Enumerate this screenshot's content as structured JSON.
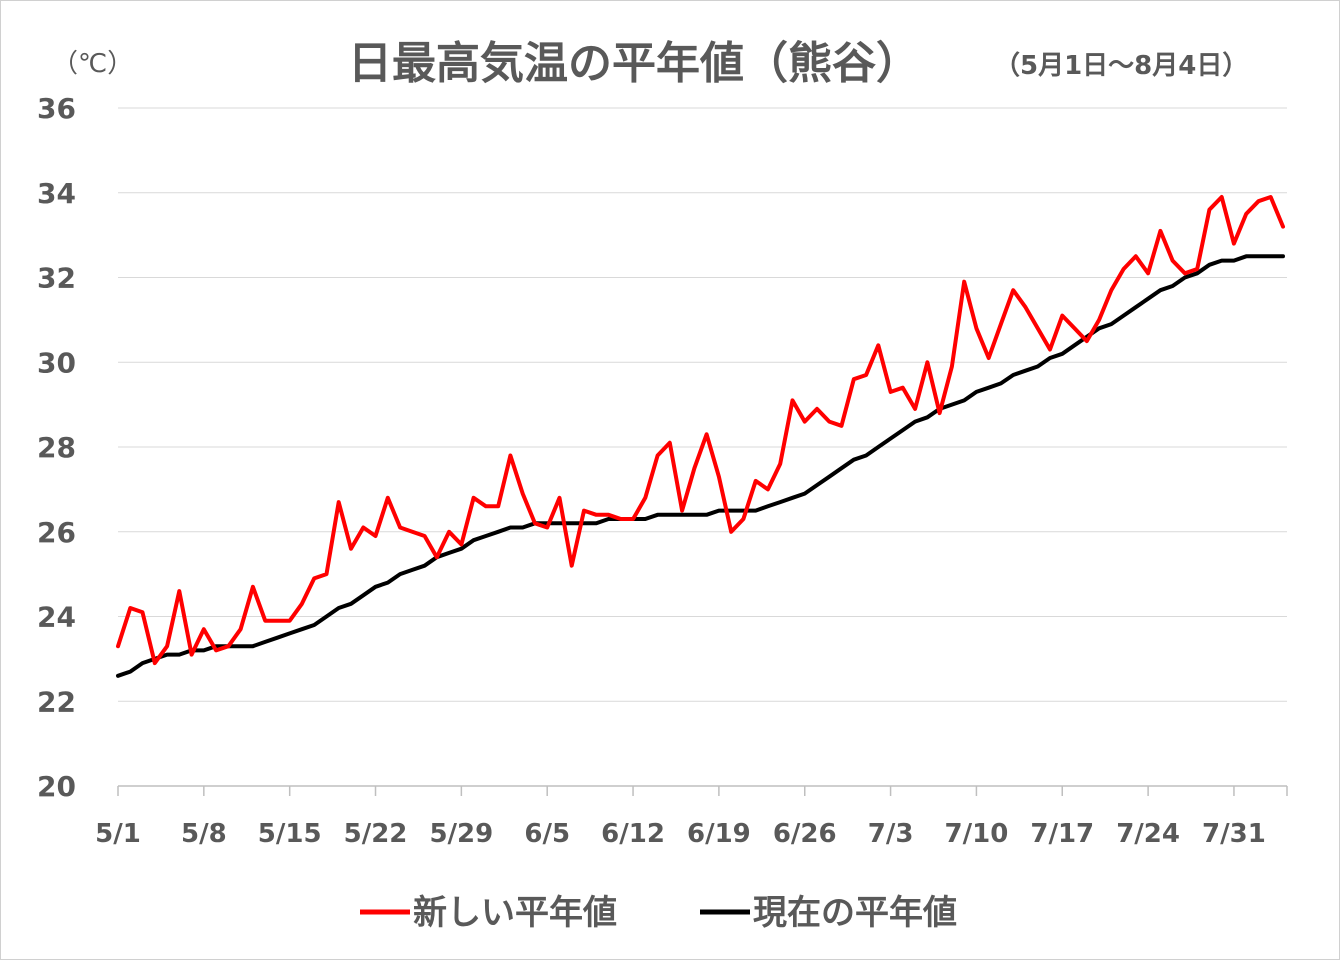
{
  "chart_data": {
    "type": "line",
    "title": "日最高気温の平年値（熊谷）",
    "subtitle": "（5月1日～8月4日）",
    "ylabel": "（℃）",
    "xlabel": "",
    "ylim": [
      20,
      36
    ],
    "yticks": [
      20,
      22,
      24,
      26,
      28,
      30,
      32,
      34,
      36
    ],
    "grid": true,
    "legend_position": "bottom",
    "x_start": "5/1",
    "x_end": "8/4",
    "x_tick_labels": [
      "5/1",
      "5/8",
      "5/15",
      "5/22",
      "5/29",
      "6/5",
      "6/12",
      "6/19",
      "6/26",
      "7/3",
      "7/10",
      "7/17",
      "7/24",
      "7/31"
    ],
    "series": [
      {
        "name": "新しい平年値",
        "color": "#ff0000",
        "values": [
          23.3,
          24.2,
          24.1,
          22.9,
          23.3,
          24.6,
          23.1,
          23.7,
          23.2,
          23.3,
          23.7,
          24.7,
          23.9,
          23.9,
          23.9,
          24.3,
          24.9,
          25.0,
          26.7,
          25.6,
          26.1,
          25.9,
          26.8,
          26.1,
          26.0,
          25.9,
          25.4,
          26.0,
          25.7,
          26.8,
          26.6,
          26.6,
          27.8,
          26.9,
          26.2,
          26.1,
          26.8,
          25.2,
          26.5,
          26.4,
          26.4,
          26.3,
          26.3,
          26.8,
          27.8,
          28.1,
          26.5,
          27.5,
          28.3,
          27.3,
          26.0,
          26.3,
          27.2,
          27.0,
          27.6,
          29.1,
          28.6,
          28.9,
          28.6,
          28.5,
          29.6,
          29.7,
          30.4,
          29.3,
          29.4,
          28.9,
          30.0,
          28.8,
          29.9,
          31.9,
          30.8,
          30.1,
          30.9,
          31.7,
          31.3,
          30.8,
          30.3,
          31.1,
          30.8,
          30.5,
          31.0,
          31.7,
          32.2,
          32.5,
          32.1,
          33.1,
          32.4,
          32.1,
          32.2,
          33.6,
          33.9,
          32.8,
          33.5,
          33.8,
          33.9,
          33.2
        ]
      },
      {
        "name": "現在の平年値",
        "color": "#000000",
        "values": [
          22.6,
          22.7,
          22.9,
          23.0,
          23.1,
          23.1,
          23.2,
          23.2,
          23.3,
          23.3,
          23.3,
          23.3,
          23.4,
          23.5,
          23.6,
          23.7,
          23.8,
          24.0,
          24.2,
          24.3,
          24.5,
          24.7,
          24.8,
          25.0,
          25.1,
          25.2,
          25.4,
          25.5,
          25.6,
          25.8,
          25.9,
          26.0,
          26.1,
          26.1,
          26.2,
          26.2,
          26.2,
          26.2,
          26.2,
          26.2,
          26.3,
          26.3,
          26.3,
          26.3,
          26.4,
          26.4,
          26.4,
          26.4,
          26.4,
          26.5,
          26.5,
          26.5,
          26.5,
          26.6,
          26.7,
          26.8,
          26.9,
          27.1,
          27.3,
          27.5,
          27.7,
          27.8,
          28.0,
          28.2,
          28.4,
          28.6,
          28.7,
          28.9,
          29.0,
          29.1,
          29.3,
          29.4,
          29.5,
          29.7,
          29.8,
          29.9,
          30.1,
          30.2,
          30.4,
          30.6,
          30.8,
          30.9,
          31.1,
          31.3,
          31.5,
          31.7,
          31.8,
          32.0,
          32.1,
          32.3,
          32.4,
          32.4,
          32.5,
          32.5,
          32.5,
          32.5
        ]
      }
    ]
  }
}
